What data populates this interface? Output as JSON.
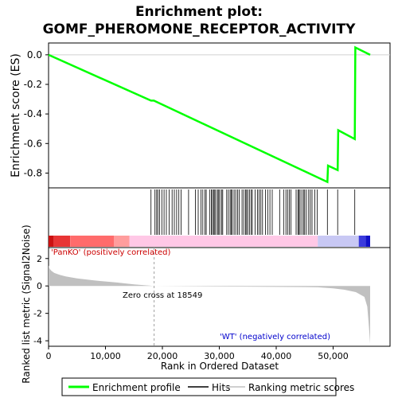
{
  "chart_data": {
    "type": "line",
    "title_line1": "Enrichment plot:",
    "title_line2": "GOMF_PHEROMONE_RECEPTOR_ACTIVITY",
    "es_panel": {
      "ylabel": "Enrichment score (ES)",
      "ylim": [
        -0.9,
        0.08
      ],
      "yticks": [
        0.0,
        -0.2,
        -0.4,
        -0.6,
        -0.8
      ],
      "ytick_labels": [
        "0.0",
        "-0.2",
        "-0.4",
        "-0.6",
        "-0.8"
      ],
      "series": [
        {
          "name": "Enrichment profile",
          "color": "#00ff00",
          "x": [
            0,
            18000,
            18500,
            49000,
            49100,
            50800,
            50900,
            53800,
            53900,
            56500
          ],
          "y": [
            0.0,
            -0.31,
            -0.31,
            -0.86,
            -0.75,
            -0.78,
            -0.51,
            -0.57,
            0.05,
            0.0
          ]
        }
      ]
    },
    "hits": [
      18000,
      18700,
      19000,
      19200,
      19500,
      19900,
      20300,
      20700,
      21200,
      21700,
      22100,
      22500,
      22900,
      23300,
      24600,
      25800,
      26300,
      26800,
      27100,
      27500,
      27700,
      28300,
      28600,
      28800,
      29000,
      29200,
      29400,
      29700,
      29900,
      30100,
      30400,
      30600,
      31300,
      31600,
      31900,
      32100,
      32300,
      32600,
      32900,
      33200,
      33500,
      34000,
      34300,
      34600,
      34800,
      35000,
      35300,
      35600,
      35800,
      36300,
      36700,
      37000,
      37300,
      37600,
      38100,
      38500,
      38900,
      39300,
      40600,
      41300,
      41700,
      42000,
      42300,
      42600,
      43500,
      43800,
      44000,
      44200,
      44500,
      44800,
      45000,
      45300,
      45700,
      46000,
      46300,
      46800,
      47200,
      49000,
      50800,
      53800
    ],
    "ranking_bar": {
      "segments": [
        {
          "from": 0,
          "to": 900,
          "color": "#cc1111"
        },
        {
          "from": 900,
          "to": 3800,
          "color": "#e83535"
        },
        {
          "from": 3800,
          "to": 11500,
          "color": "#ff6b6b"
        },
        {
          "from": 11500,
          "to": 14200,
          "color": "#ff9d9d"
        },
        {
          "from": 14200,
          "to": 47300,
          "color": "#ffc8e6"
        },
        {
          "from": 47300,
          "to": 54500,
          "color": "#c8c8f4"
        },
        {
          "from": 54500,
          "to": 55700,
          "color": "#3a3adc"
        },
        {
          "from": 55700,
          "to": 56500,
          "color": "#1010c8"
        }
      ]
    },
    "metric_panel": {
      "ylabel": "Ranked list metric (Signal2Noise)",
      "xlabel": "Rank in Ordered Dataset",
      "xlim": [
        0,
        60000
      ],
      "xticks": [
        0,
        10000,
        20000,
        30000,
        40000,
        50000
      ],
      "xtick_labels": [
        "0",
        "10,000",
        "20,000",
        "30,000",
        "40,000",
        "50,000"
      ],
      "ylim": [
        -4.4,
        2.8
      ],
      "yticks": [
        2,
        0,
        -2,
        -4
      ],
      "ytick_labels": [
        "2",
        "0",
        "-2",
        "-4"
      ],
      "metric_x": [
        0,
        200,
        500,
        1000,
        2000,
        3000,
        5000,
        8000,
        12000,
        15000,
        18549,
        25000,
        35000,
        45000,
        47300,
        50000,
        52000,
        54000,
        55500,
        56000,
        56300,
        56500
      ],
      "metric_y": [
        1.5,
        1.25,
        1.1,
        0.95,
        0.8,
        0.7,
        0.55,
        0.4,
        0.25,
        0.12,
        0.0,
        -0.02,
        -0.05,
        -0.08,
        -0.1,
        -0.18,
        -0.28,
        -0.45,
        -0.8,
        -1.5,
        -3.0,
        -4.2
      ],
      "fill_color": "#c0c0c0",
      "zero_cross_rank": 18549,
      "zero_cross_text": "Zero cross at 18549",
      "pos_label": "'PanKO' (positively correlated)",
      "neg_label": "'WT' (negatively correlated)",
      "pos_color": "#cc0000",
      "neg_color": "#0000cc"
    },
    "legend": [
      {
        "label": "Enrichment profile",
        "color": "#00ff00"
      },
      {
        "label": "Hits",
        "color": "#000000"
      },
      {
        "label": "Ranking metric scores",
        "color": "#c0c0c0"
      }
    ]
  }
}
